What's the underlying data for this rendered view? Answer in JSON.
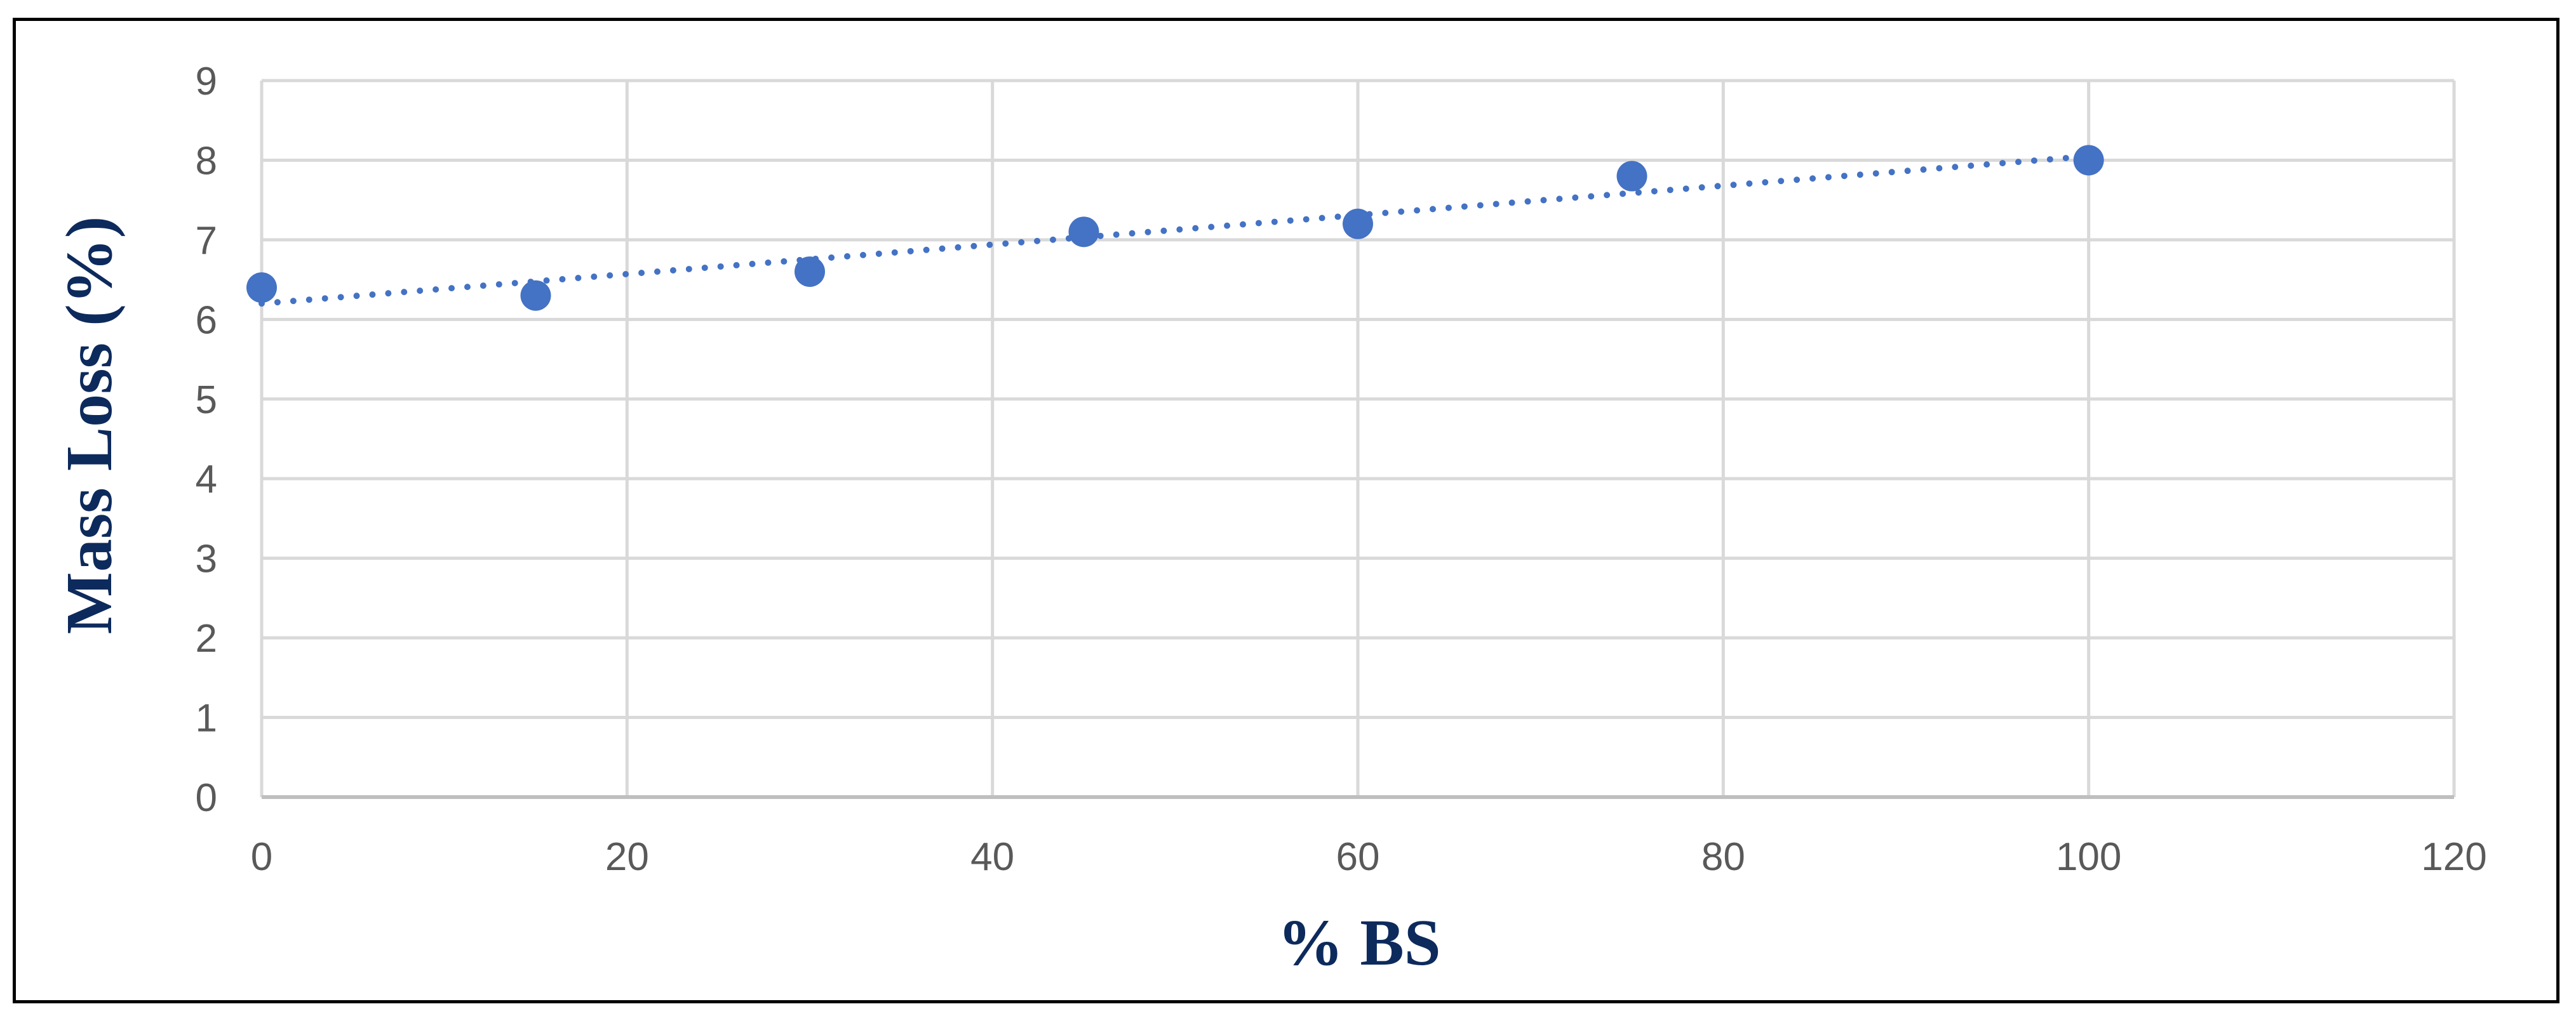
{
  "chart_data": {
    "type": "scatter",
    "title": "",
    "xlabel": "% BS",
    "ylabel": "Mass Loss (%)",
    "xlim": [
      0,
      120
    ],
    "ylim": [
      0,
      9
    ],
    "xticks": [
      "0",
      "20",
      "40",
      "60",
      "80",
      "100",
      "120"
    ],
    "yticks": [
      "0",
      "1",
      "2",
      "3",
      "4",
      "5",
      "6",
      "7",
      "8",
      "9"
    ],
    "grid": true,
    "legend": "none",
    "series": [
      {
        "x": [
          0,
          15,
          30,
          45,
          60,
          75,
          100
        ],
        "y": [
          6.4,
          6.3,
          6.6,
          7.1,
          7.2,
          7.8,
          8.0
        ],
        "color": "#4472c4",
        "trendline": {
          "type": "linear",
          "style": "dotted",
          "x": [
            0,
            100
          ],
          "y": [
            6.2,
            8.05
          ]
        }
      }
    ]
  }
}
